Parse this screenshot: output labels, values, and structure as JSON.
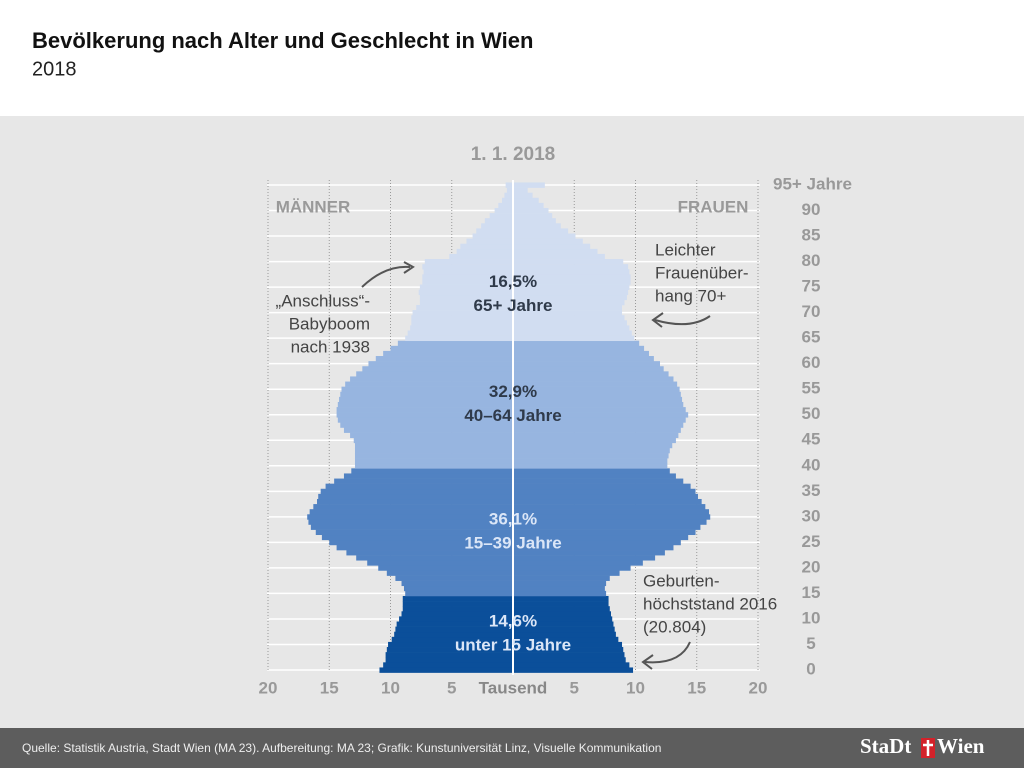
{
  "header": {
    "title": "Bevölkerung nach Alter und Geschlecht in Wien",
    "subtitle": "2018"
  },
  "chart_data": {
    "type": "pyramid",
    "title": "1. 1. 2018",
    "x_label": "Tausend",
    "xlim": [
      0,
      20
    ],
    "xticks": [
      5,
      10,
      15,
      20
    ],
    "categories": [
      "0",
      null,
      null,
      null,
      null,
      "5",
      null,
      null,
      null,
      null,
      "10",
      null,
      null,
      null,
      null,
      "15",
      null,
      null,
      null,
      null,
      "20",
      null,
      null,
      null,
      null,
      "25",
      null,
      null,
      null,
      null,
      "30",
      null,
      null,
      null,
      null,
      "35",
      null,
      null,
      null,
      null,
      "40",
      null,
      null,
      null,
      null,
      "45",
      null,
      null,
      null,
      null,
      "50",
      null,
      null,
      null,
      null,
      "55",
      null,
      null,
      null,
      null,
      "60",
      null,
      null,
      null,
      null,
      "65",
      null,
      null,
      null,
      null,
      "70",
      null,
      null,
      null,
      null,
      "75",
      null,
      null,
      null,
      null,
      "80",
      null,
      null,
      null,
      null,
      "85",
      null,
      null,
      null,
      null,
      "90",
      null,
      null,
      null,
      null,
      "95+ Jahre"
    ],
    "series": [
      {
        "name": "MÄNNER",
        "side": "left",
        "values": [
          10.9,
          10.6,
          10.4,
          10.4,
          10.3,
          10.2,
          9.9,
          9.7,
          9.6,
          9.5,
          9.3,
          9.1,
          9.0,
          9.0,
          9.0,
          8.8,
          8.9,
          9.1,
          9.6,
          10.3,
          11.0,
          11.9,
          12.8,
          13.6,
          14.4,
          15.0,
          15.6,
          16.1,
          16.5,
          16.7,
          16.8,
          16.6,
          16.3,
          16.0,
          15.9,
          15.7,
          15.3,
          14.6,
          13.8,
          13.2,
          12.9,
          12.9,
          12.9,
          12.9,
          12.9,
          13.0,
          13.3,
          13.8,
          14.1,
          14.3,
          14.4,
          14.4,
          14.3,
          14.2,
          14.1,
          14.0,
          13.7,
          13.3,
          12.8,
          12.3,
          11.8,
          11.2,
          10.6,
          10.0,
          9.4,
          8.8,
          8.6,
          8.4,
          8.3,
          8.3,
          8.2,
          7.9,
          7.6,
          7.6,
          7.7,
          7.6,
          7.4,
          7.4,
          7.3,
          7.4,
          7.2,
          5.2,
          4.6,
          4.3,
          3.8,
          3.3,
          3.0,
          2.6,
          2.3,
          1.9,
          1.5,
          1.2,
          0.9,
          0.7,
          0.5,
          0.6
        ]
      },
      {
        "name": "FRAUEN",
        "side": "right",
        "values": [
          9.8,
          9.5,
          9.2,
          9.1,
          9.0,
          8.9,
          8.6,
          8.4,
          8.3,
          8.2,
          8.1,
          8.0,
          7.9,
          7.8,
          7.8,
          7.6,
          7.5,
          7.6,
          7.9,
          8.7,
          9.6,
          10.6,
          11.6,
          12.4,
          13.1,
          13.7,
          14.3,
          14.9,
          15.3,
          15.8,
          16.1,
          16.0,
          15.7,
          15.4,
          15.1,
          14.9,
          14.5,
          13.9,
          13.3,
          12.8,
          12.6,
          12.6,
          12.7,
          12.8,
          13.0,
          13.3,
          13.5,
          13.7,
          13.9,
          14.1,
          14.3,
          14.1,
          13.9,
          13.8,
          13.7,
          13.6,
          13.4,
          13.1,
          12.7,
          12.3,
          12.0,
          11.5,
          11.1,
          10.7,
          10.3,
          9.9,
          9.7,
          9.5,
          9.3,
          9.1,
          8.9,
          8.9,
          9.1,
          9.3,
          9.4,
          9.5,
          9.6,
          9.6,
          9.5,
          9.4,
          9.0,
          7.5,
          6.9,
          6.3,
          5.7,
          5.1,
          4.5,
          3.9,
          3.5,
          3.2,
          2.9,
          2.5,
          2.1,
          1.6,
          1.2,
          2.6
        ]
      }
    ],
    "groups": [
      {
        "share": "14,6%",
        "label": "unter 15 Jahre",
        "first_age": 0,
        "last_age": 14,
        "color": "#0b4f9a"
      },
      {
        "share": "36,1%",
        "label": "15–39 Jahre",
        "first_age": 15,
        "last_age": 39,
        "color": "#5182c2"
      },
      {
        "share": "32,9%",
        "label": "40–64 Jahre",
        "first_age": 40,
        "last_age": 64,
        "color": "#97b5e0"
      },
      {
        "share": "16,5%",
        "label": "65+ Jahre",
        "first_age": 65,
        "last_age": 95,
        "color": "#d1ddf1"
      }
    ],
    "annotations": [
      {
        "lines": [
          "„Anschluss“-",
          "Babyboom",
          "nach 1938"
        ]
      },
      {
        "lines": [
          "Leichter",
          "Frauenüber-",
          "hang 70+"
        ]
      },
      {
        "lines": [
          "Geburten-",
          "höchststand 2016",
          "(20.804)"
        ]
      }
    ]
  },
  "footer": {
    "source": "Quelle: Statistik Austria, Stadt Wien (MA 23). Aufbereitung: MA 23; Grafik: Kunstuniversität Linz, Visuelle Kommunikation",
    "logo": [
      "StaDt",
      "Wien"
    ]
  }
}
